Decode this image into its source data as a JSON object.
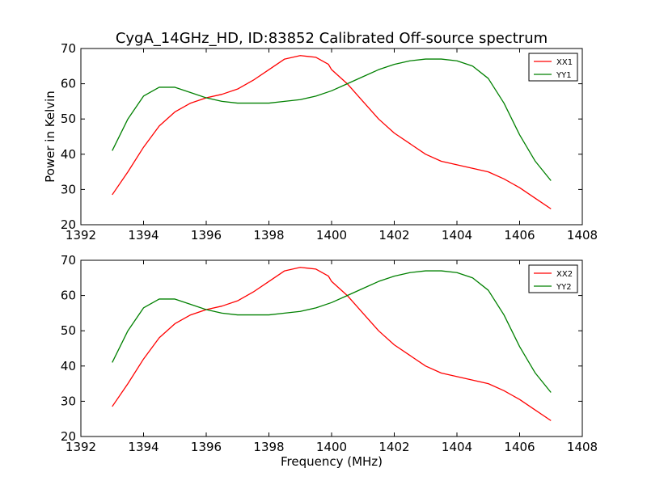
{
  "figure": {
    "title": "CygA_14GHz_HD, ID:83852 Calibrated Off-source spectrum"
  },
  "chart_data": [
    {
      "type": "line",
      "ylabel": "Power in Kelvin",
      "xlabel": "",
      "xlim": [
        1392,
        1408
      ],
      "ylim": [
        20,
        70
      ],
      "x_ticks": [
        1392,
        1394,
        1396,
        1398,
        1400,
        1402,
        1404,
        1406,
        1408
      ],
      "y_ticks": [
        20,
        30,
        40,
        50,
        60,
        70
      ],
      "legend_position": "top-right",
      "series": [
        {
          "name": "XX1",
          "color": "#ff0000",
          "x": [
            1393.0,
            1393.5,
            1394.0,
            1394.5,
            1395.0,
            1395.5,
            1396.0,
            1396.5,
            1397.0,
            1397.5,
            1398.0,
            1398.5,
            1399.0,
            1399.5,
            1399.9,
            1400.0,
            1400.5,
            1401.0,
            1401.5,
            1402.0,
            1402.5,
            1403.0,
            1403.5,
            1404.0,
            1404.5,
            1405.0,
            1405.5,
            1406.0,
            1406.5,
            1407.0
          ],
          "values": [
            28.5,
            35.0,
            42.0,
            48.0,
            52.0,
            54.5,
            56.0,
            57.0,
            58.5,
            61.0,
            64.0,
            67.0,
            68.0,
            67.5,
            65.5,
            64.0,
            60.0,
            55.0,
            50.0,
            46.0,
            43.0,
            40.0,
            38.0,
            37.0,
            36.0,
            35.0,
            33.0,
            30.5,
            27.5,
            24.5
          ]
        },
        {
          "name": "YY1",
          "color": "#008000",
          "x": [
            1393.0,
            1393.5,
            1394.0,
            1394.5,
            1395.0,
            1395.5,
            1396.0,
            1396.5,
            1397.0,
            1397.5,
            1398.0,
            1398.5,
            1399.0,
            1399.5,
            1400.0,
            1400.5,
            1401.0,
            1401.5,
            1402.0,
            1402.5,
            1403.0,
            1403.5,
            1404.0,
            1404.5,
            1405.0,
            1405.5,
            1406.0,
            1406.5,
            1407.0
          ],
          "values": [
            41.0,
            50.0,
            56.5,
            59.0,
            59.0,
            57.5,
            56.0,
            55.0,
            54.5,
            54.5,
            54.5,
            55.0,
            55.5,
            56.5,
            58.0,
            60.0,
            62.0,
            64.0,
            65.5,
            66.5,
            67.0,
            67.0,
            66.5,
            65.0,
            61.5,
            54.5,
            45.5,
            38.0,
            32.5
          ]
        }
      ]
    },
    {
      "type": "line",
      "ylabel": "",
      "xlabel": "Frequency (MHz)",
      "xlim": [
        1392,
        1408
      ],
      "ylim": [
        20,
        70
      ],
      "x_ticks": [
        1392,
        1394,
        1396,
        1398,
        1400,
        1402,
        1404,
        1406,
        1408
      ],
      "y_ticks": [
        20,
        30,
        40,
        50,
        60,
        70
      ],
      "legend_position": "top-right",
      "series": [
        {
          "name": "XX2",
          "color": "#ff0000",
          "x": [
            1393.0,
            1393.5,
            1394.0,
            1394.5,
            1395.0,
            1395.5,
            1396.0,
            1396.5,
            1397.0,
            1397.5,
            1398.0,
            1398.5,
            1399.0,
            1399.5,
            1399.9,
            1400.0,
            1400.5,
            1401.0,
            1401.5,
            1402.0,
            1402.5,
            1403.0,
            1403.5,
            1404.0,
            1404.5,
            1405.0,
            1405.5,
            1406.0,
            1406.5,
            1407.0
          ],
          "values": [
            28.5,
            35.0,
            42.0,
            48.0,
            52.0,
            54.5,
            56.0,
            57.0,
            58.5,
            61.0,
            64.0,
            67.0,
            68.0,
            67.5,
            65.5,
            64.0,
            60.0,
            55.0,
            50.0,
            46.0,
            43.0,
            40.0,
            38.0,
            37.0,
            36.0,
            35.0,
            33.0,
            30.5,
            27.5,
            24.5
          ]
        },
        {
          "name": "YY2",
          "color": "#008000",
          "x": [
            1393.0,
            1393.5,
            1394.0,
            1394.5,
            1395.0,
            1395.5,
            1396.0,
            1396.5,
            1397.0,
            1397.5,
            1398.0,
            1398.5,
            1399.0,
            1399.5,
            1400.0,
            1400.5,
            1401.0,
            1401.5,
            1402.0,
            1402.5,
            1403.0,
            1403.5,
            1404.0,
            1404.5,
            1405.0,
            1405.5,
            1406.0,
            1406.5,
            1407.0
          ],
          "values": [
            41.0,
            50.0,
            56.5,
            59.0,
            59.0,
            57.5,
            56.0,
            55.0,
            54.5,
            54.5,
            54.5,
            55.0,
            55.5,
            56.5,
            58.0,
            60.0,
            62.0,
            64.0,
            65.5,
            66.5,
            67.0,
            67.0,
            66.5,
            65.0,
            61.5,
            54.5,
            45.5,
            38.0,
            32.5
          ]
        }
      ]
    }
  ]
}
